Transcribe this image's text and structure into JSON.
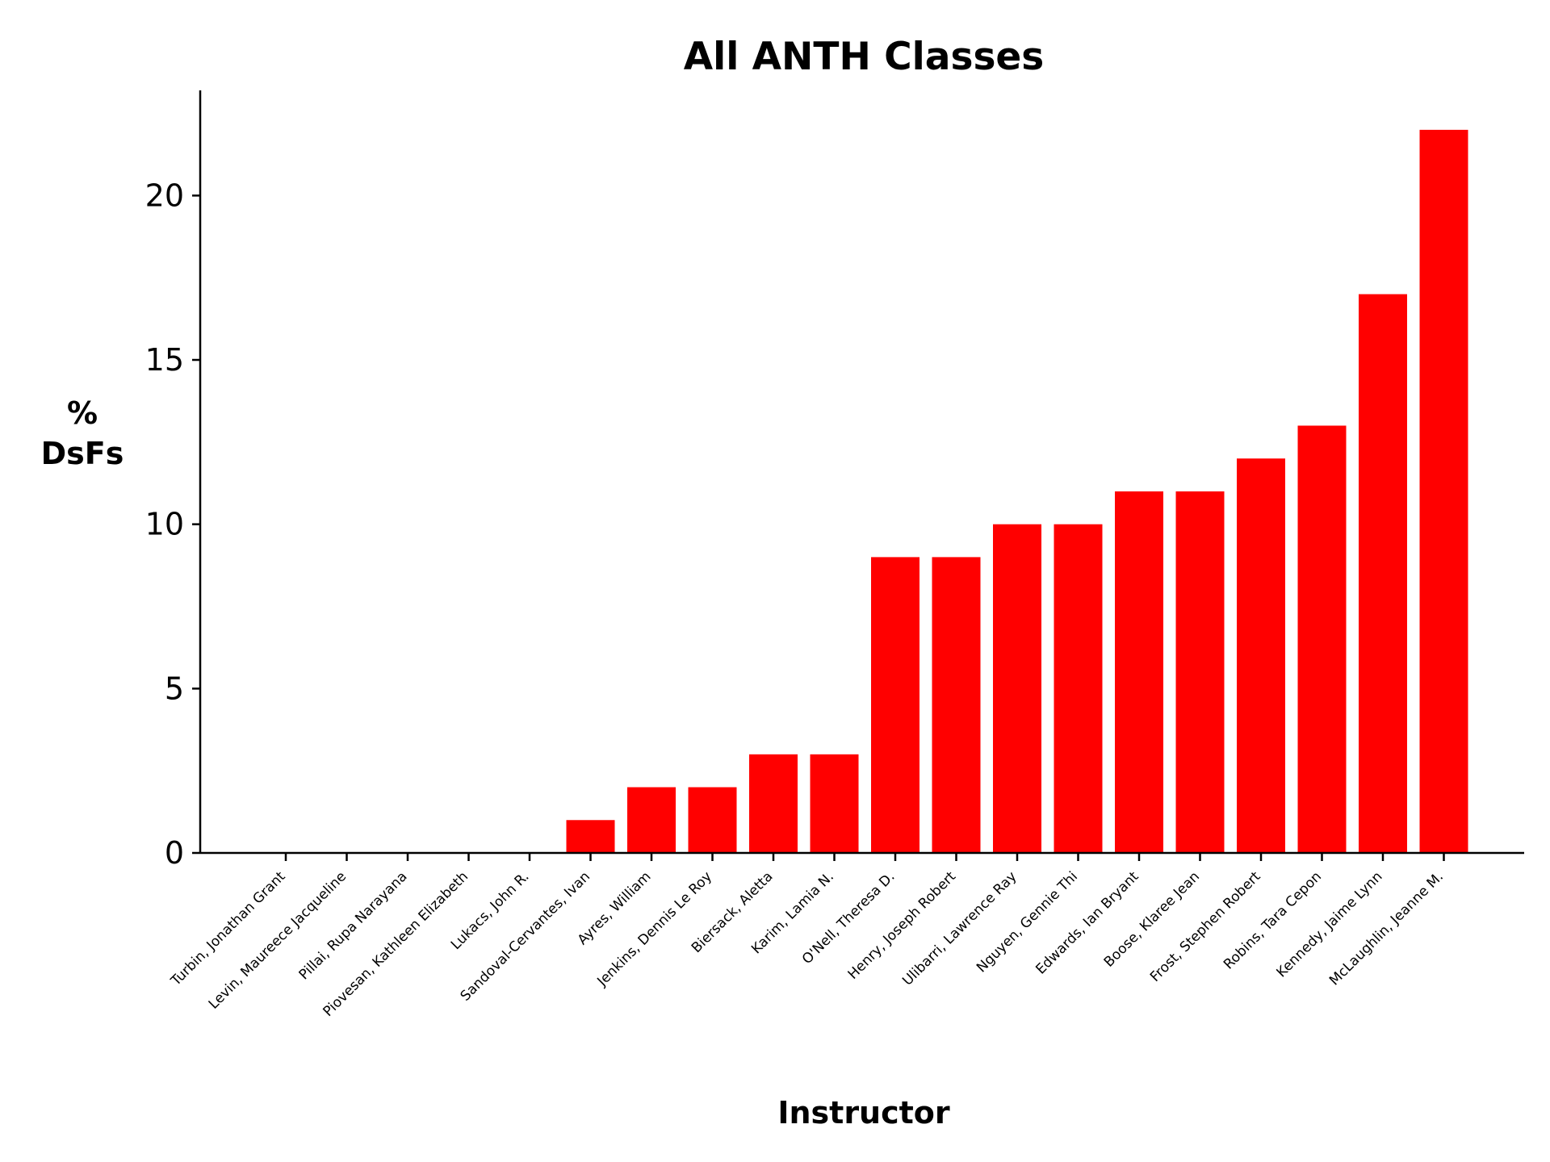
{
  "chart_data": {
    "type": "bar",
    "title": "All ANTH Classes",
    "xlabel": "Instructor",
    "ylabel_lines": [
      "%",
      "DsFs"
    ],
    "ylim": [
      0,
      23.2
    ],
    "yticks": [
      0,
      5,
      10,
      15,
      20
    ],
    "bar_color": "#ff0000",
    "categories": [
      "Turbin, Jonathan Grant",
      "Levin, Maureece Jacqueline",
      "Pillai, Rupa Narayana",
      "Piovesan, Kathleen Elizabeth",
      "Lukacs, John R.",
      "Sandoval-Cervantes, Ivan",
      "Ayres, William",
      "Jenkins, Dennis Le Roy",
      "Biersack, Aletta",
      "Karim, Lamia N.",
      "O'Nell, Theresa D.",
      "Henry, Joseph Robert",
      "Ulibarri, Lawrence Ray",
      "Nguyen, Gennie Thi",
      "Edwards, Ian Bryant",
      "Boose, Klaree Jean",
      "Frost, Stephen Robert",
      "Robins, Tara Cepon",
      "Kennedy, Jaime Lynn",
      "McLaughlin, Jeanne M."
    ],
    "values": [
      0,
      0,
      0,
      0,
      0,
      1,
      2,
      2,
      3,
      3,
      9,
      9,
      10,
      10,
      11,
      11,
      12,
      13,
      17,
      22
    ],
    "grid": false,
    "legend": "none"
  }
}
